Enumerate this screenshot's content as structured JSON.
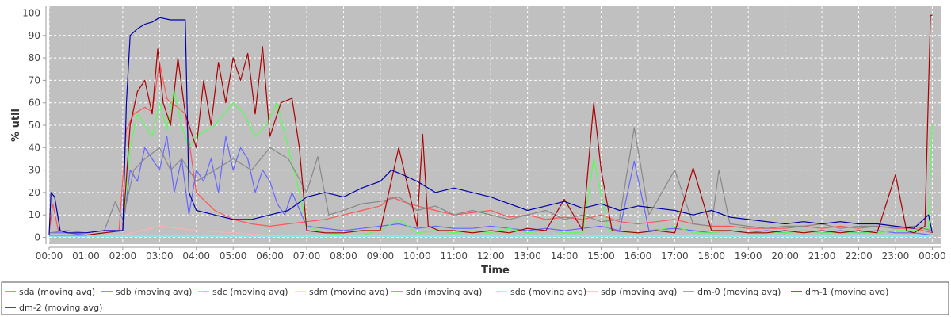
{
  "chart_data": {
    "type": "line",
    "title": "",
    "xlabel": "Time",
    "ylabel": "% util",
    "xlim": [
      0,
      24.25
    ],
    "ylim": [
      -3,
      103
    ],
    "grid": true,
    "legend_position": "bottom",
    "x_ticks": [
      0,
      1,
      2,
      3,
      4,
      5,
      6,
      7,
      8,
      9,
      10,
      11,
      12,
      13,
      14,
      15,
      16,
      17,
      18,
      19,
      20,
      21,
      22,
      23,
      24
    ],
    "x_tick_labels": [
      "00:00",
      "01:00",
      "02:00",
      "03:00",
      "04:00",
      "05:00",
      "06:00",
      "07:00",
      "08:00",
      "09:00",
      "10:00",
      "11:00",
      "12:00",
      "13:00",
      "14:00",
      "15:00",
      "16:00",
      "17:00",
      "18:00",
      "19:00",
      "20:00",
      "21:00",
      "22:00",
      "23:00",
      "00:00"
    ],
    "y_ticks": [
      0,
      10,
      20,
      30,
      40,
      50,
      60,
      70,
      80,
      90,
      100
    ],
    "y_tick_labels": [
      "0",
      "10",
      "20",
      "30",
      "40",
      "50",
      "60",
      "70",
      "80",
      "90",
      "100"
    ],
    "series": [
      {
        "name": "sda (moving avg)",
        "color": "#ff5555",
        "x": [
          0.0,
          0.1,
          0.25,
          0.5,
          1.0,
          1.5,
          1.9,
          2.1,
          2.3,
          2.6,
          2.8,
          3.0,
          3.2,
          3.3,
          3.5,
          3.7,
          4.0,
          4.5,
          5.0,
          5.5,
          6.0,
          6.5,
          7.0,
          7.5,
          8.0,
          8.5,
          9.0,
          9.3,
          9.6,
          10.0,
          10.5,
          11.0,
          11.5,
          12.0,
          12.5,
          13.0,
          13.5,
          14.0,
          14.5,
          15.0,
          15.5,
          16.0,
          16.5,
          17.0,
          17.5,
          18.0,
          18.5,
          19.0,
          19.5,
          20.0,
          20.5,
          21.0,
          21.5,
          22.0,
          22.5,
          23.0,
          23.5,
          24.0
        ],
        "y": [
          2,
          15,
          3,
          2,
          1,
          2,
          3,
          48,
          55,
          58,
          56,
          78,
          62,
          60,
          58,
          55,
          20,
          12,
          8,
          6,
          5,
          6,
          7,
          8,
          10,
          12,
          14,
          18,
          16,
          14,
          12,
          10,
          11,
          12,
          9,
          10,
          8,
          9,
          8,
          10,
          7,
          6,
          7,
          8,
          6,
          5,
          5,
          4,
          4,
          4,
          5,
          4,
          5,
          4,
          5,
          4,
          4,
          2
        ]
      },
      {
        "name": "sdb (moving avg)",
        "color": "#6666ff",
        "x": [
          0.0,
          0.5,
          1.0,
          1.5,
          2.0,
          2.2,
          2.4,
          2.6,
          2.8,
          3.0,
          3.2,
          3.4,
          3.6,
          3.8,
          4.0,
          4.2,
          4.4,
          4.6,
          4.8,
          5.0,
          5.2,
          5.4,
          5.6,
          5.8,
          6.0,
          6.2,
          6.4,
          6.6,
          7.0,
          7.5,
          8.0,
          8.5,
          9.0,
          9.5,
          10.0,
          10.5,
          11.0,
          11.5,
          12.0,
          12.5,
          13.0,
          13.5,
          14.0,
          14.5,
          15.0,
          15.5,
          15.9,
          16.3,
          17.0,
          17.5,
          18.0,
          18.5,
          19.0,
          19.5,
          20.0,
          20.5,
          21.0,
          21.5,
          22.0,
          22.5,
          23.0,
          23.5,
          24.0
        ],
        "y": [
          2,
          2,
          1,
          2,
          3,
          30,
          25,
          40,
          35,
          30,
          45,
          20,
          35,
          10,
          30,
          25,
          35,
          20,
          45,
          30,
          40,
          35,
          20,
          30,
          25,
          15,
          10,
          20,
          5,
          4,
          3,
          4,
          5,
          6,
          4,
          5,
          4,
          4,
          5,
          4,
          3,
          4,
          3,
          4,
          5,
          3,
          34,
          3,
          4,
          3,
          2,
          3,
          2,
          3,
          2,
          3,
          2,
          3,
          2,
          3,
          2,
          2,
          1
        ]
      },
      {
        "name": "sdc (moving avg)",
        "color": "#55ff55",
        "x": [
          0.0,
          0.5,
          1.0,
          1.5,
          2.0,
          2.2,
          2.4,
          2.6,
          2.8,
          3.0,
          3.2,
          3.4,
          3.6,
          3.8,
          4.0,
          4.5,
          5.0,
          5.3,
          5.6,
          5.9,
          6.2,
          6.5,
          6.8,
          7.0,
          7.5,
          8.0,
          8.5,
          9.0,
          9.5,
          10.0,
          10.5,
          11.0,
          11.5,
          12.0,
          12.5,
          13.0,
          13.5,
          14.0,
          14.5,
          14.8,
          15.2,
          16.0,
          16.5,
          17.0,
          17.5,
          18.0,
          18.5,
          19.0,
          19.5,
          20.0,
          20.5,
          21.0,
          21.5,
          22.0,
          22.5,
          23.0,
          23.5,
          23.9,
          24.0
        ],
        "y": [
          1,
          1,
          1,
          2,
          3,
          40,
          55,
          50,
          45,
          60,
          48,
          66,
          50,
          40,
          45,
          50,
          60,
          55,
          45,
          50,
          60,
          40,
          20,
          5,
          2,
          1,
          1,
          3,
          8,
          2,
          3,
          2,
          3,
          2,
          4,
          2,
          3,
          2,
          2,
          35,
          3,
          2,
          3,
          5,
          2,
          2,
          3,
          2,
          2,
          2,
          3,
          2,
          2,
          2,
          2,
          3,
          3,
          4,
          50
        ]
      },
      {
        "name": "sdm (moving avg)",
        "color": "#eeee44",
        "x": [
          0,
          6,
          12,
          18,
          24
        ],
        "y": [
          0.5,
          0.5,
          0.5,
          0.5,
          0.5
        ]
      },
      {
        "name": "sdn (moving avg)",
        "color": "#ee44ee",
        "x": [
          0,
          6,
          12,
          18,
          24
        ],
        "y": [
          0.5,
          0.5,
          0.5,
          0.5,
          0.5
        ]
      },
      {
        "name": "sdo (moving avg)",
        "color": "#66ffff",
        "x": [
          0,
          6,
          12,
          18,
          24
        ],
        "y": [
          0.5,
          0.5,
          0.5,
          0.5,
          0.5
        ]
      },
      {
        "name": "sdp (moving avg)",
        "color": "#ffb0b0",
        "x": [
          0.0,
          2.0,
          2.5,
          3.0,
          3.5,
          4.0,
          5.0,
          6.0,
          8.0,
          12.0,
          16.0,
          20.0,
          24.0
        ],
        "y": [
          1,
          1,
          3,
          5,
          4,
          3,
          2,
          1,
          1,
          1,
          1,
          1,
          1
        ]
      },
      {
        "name": "dm-0 (moving avg)",
        "color": "#888888",
        "x": [
          0.0,
          0.5,
          1.0,
          1.5,
          1.8,
          2.0,
          2.3,
          2.6,
          3.0,
          3.3,
          3.6,
          4.0,
          4.5,
          5.0,
          5.5,
          6.0,
          6.5,
          7.0,
          7.3,
          7.6,
          8.0,
          8.5,
          9.0,
          9.5,
          10.0,
          10.5,
          11.0,
          11.5,
          12.0,
          12.5,
          13.0,
          13.5,
          14.0,
          14.5,
          15.0,
          15.5,
          15.9,
          16.3,
          17.0,
          17.5,
          18.0,
          18.2,
          18.5,
          19.0,
          19.5,
          20.0,
          20.5,
          21.0,
          21.5,
          22.0,
          22.5,
          23.0,
          23.5,
          24.0
        ],
        "y": [
          2,
          3,
          2,
          3,
          16,
          8,
          30,
          35,
          40,
          30,
          35,
          25,
          30,
          35,
          30,
          40,
          35,
          20,
          36,
          10,
          12,
          15,
          16,
          18,
          12,
          14,
          10,
          12,
          10,
          8,
          10,
          12,
          8,
          10,
          7,
          8,
          49,
          10,
          30,
          6,
          5,
          30,
          6,
          5,
          4,
          5,
          5,
          6,
          4,
          5,
          5,
          4,
          5,
          3
        ]
      },
      {
        "name": "dm-1 (moving avg)",
        "color": "#aa0000",
        "x": [
          0.0,
          0.5,
          1.0,
          1.5,
          2.0,
          2.2,
          2.4,
          2.6,
          2.8,
          2.95,
          3.1,
          3.3,
          3.5,
          3.7,
          4.0,
          4.2,
          4.4,
          4.6,
          4.8,
          5.0,
          5.2,
          5.4,
          5.6,
          5.8,
          6.0,
          6.3,
          6.6,
          6.8,
          7.0,
          7.5,
          8.0,
          8.5,
          9.0,
          9.5,
          10.0,
          10.15,
          10.3,
          10.6,
          11.0,
          11.5,
          12.0,
          12.5,
          13.0,
          13.5,
          14.0,
          14.5,
          14.8,
          15.0,
          15.3,
          16.0,
          16.5,
          17.0,
          17.5,
          18.0,
          18.5,
          19.0,
          19.5,
          20.0,
          20.5,
          21.0,
          21.5,
          22.0,
          22.5,
          23.0,
          23.3,
          23.5,
          23.8,
          23.95,
          24.0
        ],
        "y": [
          1,
          1,
          1,
          2,
          3,
          50,
          65,
          70,
          55,
          84,
          60,
          50,
          80,
          55,
          40,
          70,
          50,
          78,
          60,
          80,
          70,
          82,
          55,
          85,
          45,
          60,
          62,
          40,
          3,
          2,
          2,
          3,
          3,
          40,
          5,
          46,
          5,
          3,
          3,
          2,
          3,
          2,
          4,
          3,
          17,
          3,
          60,
          30,
          3,
          2,
          3,
          2,
          31,
          3,
          3,
          2,
          2,
          3,
          2,
          3,
          2,
          3,
          2,
          28,
          3,
          2,
          5,
          99,
          99
        ]
      },
      {
        "name": "dm-2 (moving avg)",
        "color": "#0000aa",
        "x": [
          0.0,
          0.05,
          0.15,
          0.3,
          0.5,
          1.0,
          1.5,
          2.0,
          2.1,
          2.2,
          2.4,
          2.6,
          2.8,
          3.0,
          3.3,
          3.5,
          3.7,
          3.8,
          4.0,
          4.5,
          5.0,
          5.5,
          6.0,
          6.5,
          7.0,
          7.5,
          8.0,
          8.5,
          9.0,
          9.3,
          9.6,
          10.0,
          10.5,
          11.0,
          11.5,
          12.0,
          12.5,
          13.0,
          13.5,
          14.0,
          14.5,
          15.0,
          15.5,
          16.0,
          16.5,
          17.0,
          17.5,
          18.0,
          18.5,
          19.0,
          19.5,
          20.0,
          20.5,
          21.0,
          21.5,
          22.0,
          22.5,
          23.0,
          23.5,
          23.9,
          24.0
        ],
        "y": [
          1,
          20,
          18,
          3,
          2,
          2,
          3,
          3,
          60,
          90,
          93,
          95,
          96,
          98,
          97,
          97,
          97,
          20,
          12,
          10,
          8,
          8,
          10,
          12,
          18,
          20,
          18,
          22,
          25,
          30,
          28,
          25,
          20,
          22,
          20,
          18,
          15,
          12,
          14,
          16,
          13,
          15,
          12,
          14,
          13,
          12,
          10,
          12,
          9,
          8,
          7,
          6,
          7,
          6,
          7,
          6,
          6,
          5,
          4,
          10,
          2
        ]
      }
    ]
  }
}
